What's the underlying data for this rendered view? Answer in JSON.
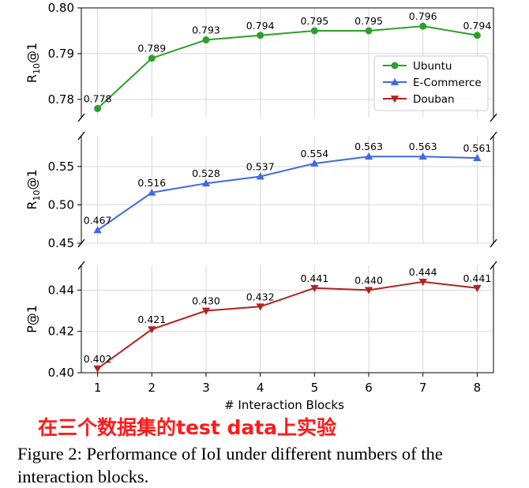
{
  "chart_data": {
    "type": "line",
    "x": [
      1,
      2,
      3,
      4,
      5,
      6,
      7,
      8
    ],
    "xticks": [
      "1",
      "2",
      "3",
      "4",
      "5",
      "6",
      "7",
      "8"
    ],
    "xlabel": "# Interaction Blocks",
    "grid": true,
    "legend_position": "right (top panel)",
    "legend": [
      "Ubuntu",
      "E-Commerce",
      "Douban"
    ],
    "panels": [
      {
        "series": "Ubuntu",
        "ylabel": "R10@1",
        "ylim": [
          0.776,
          0.8
        ],
        "yticks": [
          "0.78",
          "0.79",
          "0.80"
        ],
        "values": [
          0.778,
          0.789,
          0.793,
          0.794,
          0.795,
          0.795,
          0.796,
          0.794
        ],
        "labels": [
          "0.778",
          "0.789",
          "0.793",
          "0.794",
          "0.795",
          "0.795",
          "0.796",
          "0.794"
        ],
        "color": "#2ca02c",
        "marker": "circle"
      },
      {
        "series": "E-Commerce",
        "ylabel": "R10@1",
        "ylim": [
          0.45,
          0.59
        ],
        "yticks": [
          "0.45",
          "0.50",
          "0.55"
        ],
        "values": [
          0.467,
          0.516,
          0.528,
          0.537,
          0.554,
          0.563,
          0.563,
          0.561
        ],
        "labels": [
          "0.467",
          "0.516",
          "0.528",
          "0.537",
          "0.554",
          "0.563",
          "0.563",
          "0.561"
        ],
        "color": "#4169e1",
        "marker": "triangle-up"
      },
      {
        "series": "Douban",
        "ylabel": "P@1",
        "ylim": [
          0.4,
          0.452
        ],
        "yticks": [
          "0.40",
          "0.42",
          "0.44"
        ],
        "values": [
          0.402,
          0.421,
          0.43,
          0.432,
          0.441,
          0.44,
          0.444,
          0.441
        ],
        "labels": [
          "0.402",
          "0.421",
          "0.430",
          "0.432",
          "0.441",
          "0.440",
          "0.444",
          "0.441"
        ],
        "color": "#b22222",
        "marker": "triangle-down"
      }
    ]
  },
  "annotation": "在三个数据集的test data上实验",
  "caption": "Figure 2: Performance of IoI under different numbers of the interaction blocks."
}
